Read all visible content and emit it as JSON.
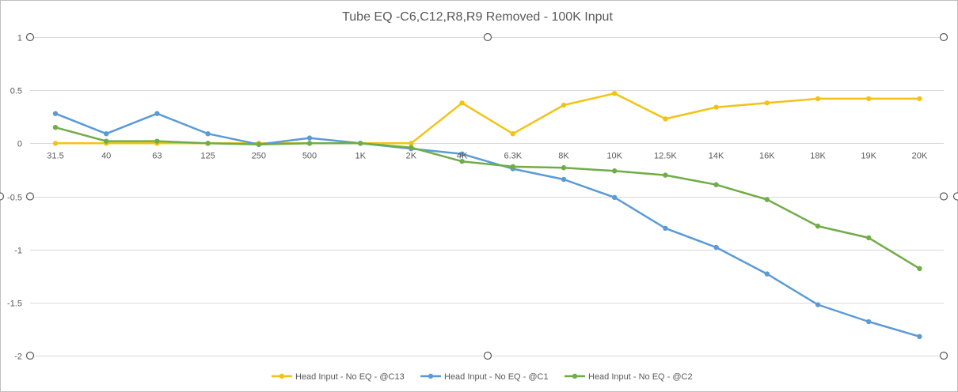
{
  "chart_data": {
    "type": "line",
    "title": "Tube EQ  -C6,C12,R8,R9 Removed - 100K Input",
    "xlabel": "",
    "ylabel": "",
    "categories": [
      "31.5",
      "40",
      "63",
      "125",
      "250",
      "500",
      "1K",
      "2K",
      "4K",
      "6.3K",
      "8K",
      "10K",
      "12.5K",
      "14K",
      "16K",
      "18K",
      "19K",
      "20K"
    ],
    "ylim": [
      -2,
      1
    ],
    "yticks": [
      1,
      0.5,
      0,
      -0.5,
      -1,
      -1.5,
      -2
    ],
    "ytick_labels": [
      "1",
      "0.5",
      "0",
      "-0.5",
      "-1",
      "-1.5",
      "-2"
    ],
    "grid": true,
    "legend_position": "bottom",
    "series": [
      {
        "name": "Head Input - No EQ - @C13",
        "color": "#F2C314",
        "values": [
          0,
          0,
          0,
          0,
          0,
          0,
          0,
          0,
          0.38,
          0.09,
          0.36,
          0.47,
          0.23,
          0.34,
          0.38,
          0.42,
          0.42,
          0.42
        ]
      },
      {
        "name": "Head Input - No EQ - @C1",
        "color": "#5B9BD5",
        "values": [
          0.28,
          0.09,
          0.28,
          0.09,
          -0.01,
          0.05,
          0,
          -0.05,
          -0.1,
          -0.24,
          -0.34,
          -0.51,
          -0.8,
          -0.98,
          -1.23,
          -1.52,
          -1.68,
          -1.82
        ]
      },
      {
        "name": "Head Input - No EQ - @C2",
        "color": "#70AD47",
        "values": [
          0.15,
          0.02,
          0.02,
          0,
          -0.01,
          0,
          0,
          -0.04,
          -0.17,
          -0.22,
          -0.23,
          -0.26,
          -0.3,
          -0.39,
          -0.53,
          -0.78,
          -0.89,
          -1.18
        ]
      }
    ]
  }
}
